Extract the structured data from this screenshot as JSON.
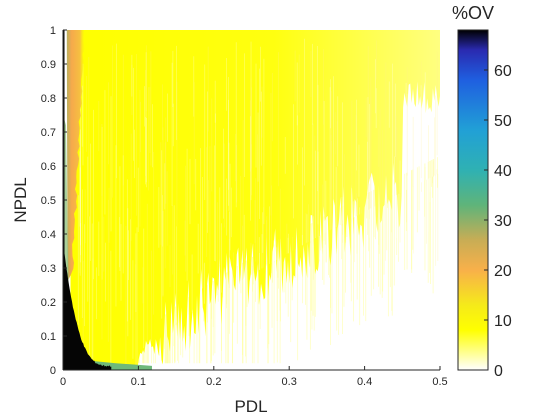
{
  "chart_data": {
    "type": "heatmap",
    "title": "",
    "xlabel": "PDL",
    "ylabel": "NPDL",
    "xlim": [
      0,
      0.5
    ],
    "ylim": [
      0,
      1
    ],
    "xticks": [
      "0",
      "0.1",
      "0.2",
      "0.3",
      "0.4",
      "0.5"
    ],
    "yticks": [
      "0",
      "0.1",
      "0.2",
      "0.3",
      "0.4",
      "0.5",
      "0.6",
      "0.7",
      "0.8",
      "0.9",
      "1"
    ],
    "grid": false,
    "colorbar": {
      "title": "%OV",
      "range": [
        0,
        68
      ],
      "ticks": [
        "0",
        "10",
        "20",
        "30",
        "40",
        "50",
        "60"
      ],
      "colormap": [
        {
          "v": 0,
          "color": "#ffffff"
        },
        {
          "v": 8,
          "color": "#ffff00"
        },
        {
          "v": 13,
          "color": "#f5ea1a"
        },
        {
          "v": 20,
          "color": "#f8b04a"
        },
        {
          "v": 26,
          "color": "#c8ad55"
        },
        {
          "v": 33,
          "color": "#5fb47a"
        },
        {
          "v": 40,
          "color": "#2fb1b3"
        },
        {
          "v": 48,
          "color": "#21a0d6"
        },
        {
          "v": 58,
          "color": "#1f5fe0"
        },
        {
          "v": 64,
          "color": "#2a2ab0"
        },
        {
          "v": 68,
          "color": "#000000"
        }
      ]
    },
    "regions": [
      {
        "level": 2,
        "desc": "faint tail",
        "x": [
          0.12,
          0.5
        ],
        "y_min_at_x": [
          [
            0.12,
            0.08
          ],
          [
            0.2,
            0.2
          ],
          [
            0.3,
            0.4
          ],
          [
            0.4,
            0.6
          ],
          [
            0.5,
            0.75
          ]
        ]
      },
      {
        "level": 10,
        "desc": "yellow bulk",
        "x": [
          0.02,
          0.5
        ]
      },
      {
        "level": 20,
        "desc": "orange band",
        "x": [
          0.005,
          0.025
        ],
        "y": [
          0.3,
          1
        ]
      },
      {
        "level": 32,
        "desc": "green strip",
        "x": [
          0.0,
          0.12
        ],
        "y": [
          0.0,
          0.02
        ]
      },
      {
        "level": 68,
        "desc": "black corner",
        "x": [
          0.0,
          0.065
        ],
        "y": [
          0.0,
          1
        ]
      }
    ]
  }
}
